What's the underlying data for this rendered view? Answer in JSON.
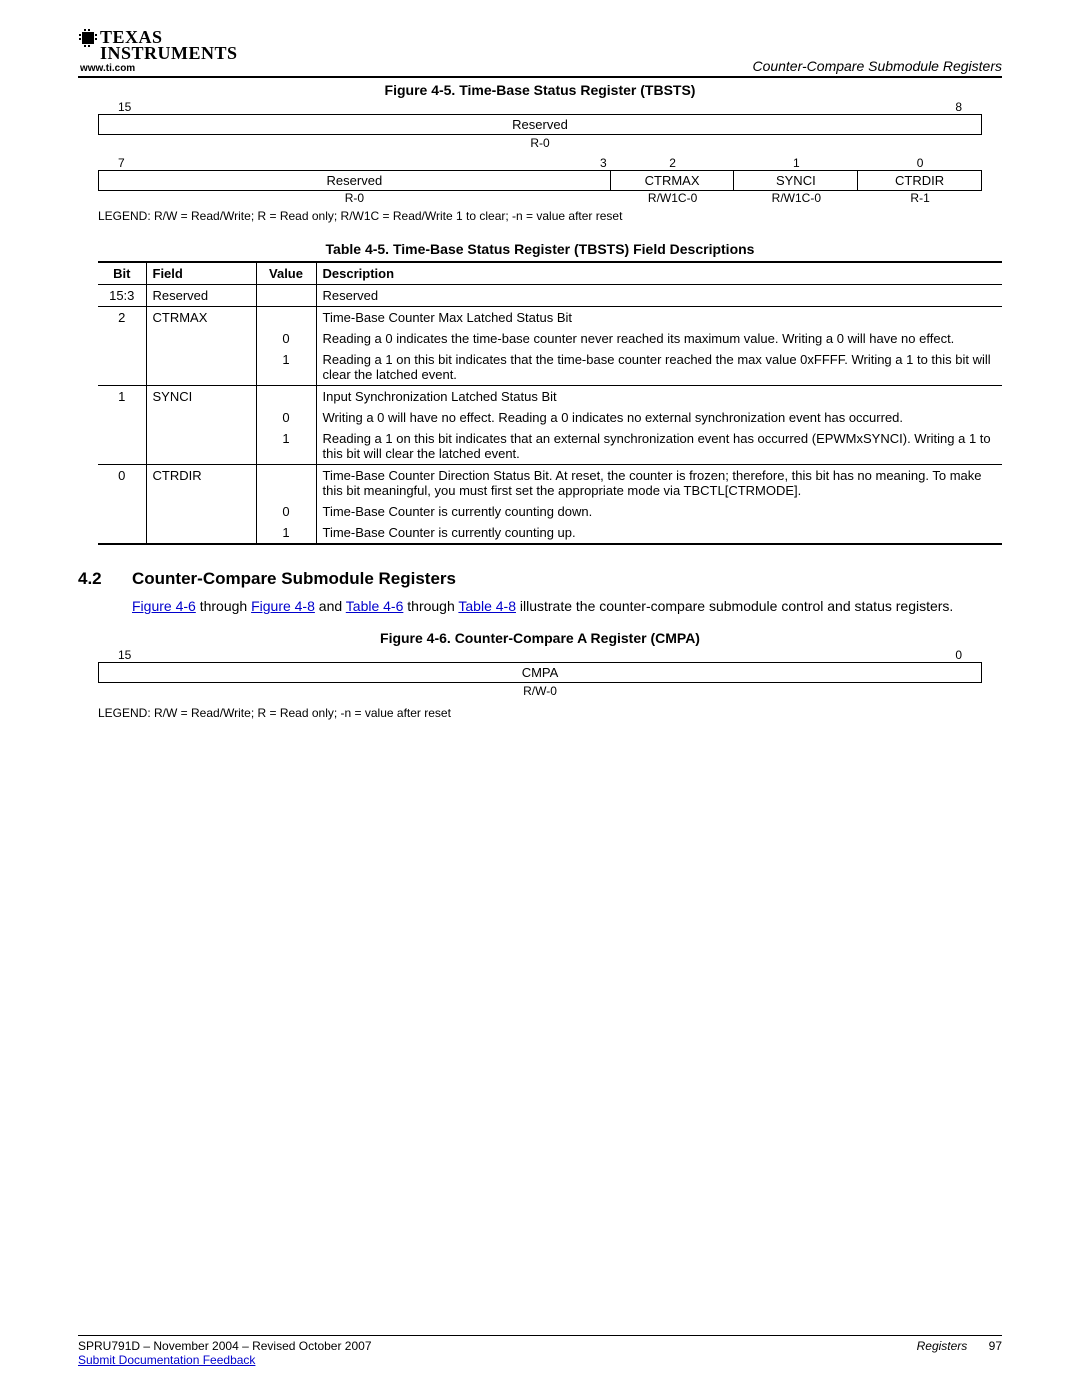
{
  "logo": {
    "line1": "TEXAS",
    "line2": "INSTRUMENTS",
    "url": "www.ti.com"
  },
  "header_section": "Counter-Compare Submodule Registers",
  "figure45": {
    "title": "Figure 4-5. Time-Base Status Register (TBSTS)",
    "row1": {
      "left_bit": "15",
      "right_bit": "8",
      "name": "Reserved",
      "access": "R-0"
    },
    "row2": {
      "bits": [
        "7",
        "3",
        "2",
        "1",
        "0"
      ],
      "cells": [
        "Reserved",
        "CTRMAX",
        "SYNCI",
        "CTRDIR"
      ],
      "access": [
        "R-0",
        "R/W1C-0",
        "R/W1C-0",
        "R-1"
      ],
      "widths_pct": [
        58,
        14,
        14,
        14
      ]
    },
    "legend": "LEGEND: R/W = Read/Write; R = Read only; R/W1C = Read/Write 1 to clear; -n = value after reset"
  },
  "table45": {
    "title": "Table 4-5. Time-Base Status Register (TBSTS) Field Descriptions",
    "headers": [
      "Bit",
      "Field",
      "Value",
      "Description"
    ],
    "rows": [
      {
        "group_top": true,
        "bit": "15:3",
        "field": "Reserved",
        "value": "",
        "desc": "Reserved"
      },
      {
        "group_top": true,
        "bit": "2",
        "field": "CTRMAX",
        "value": "",
        "desc": "Time-Base Counter Max Latched Status Bit"
      },
      {
        "bit": "",
        "field": "",
        "value": "0",
        "desc": "Reading a 0 indicates the time-base counter never reached its maximum value. Writing a 0 will have no effect."
      },
      {
        "bit": "",
        "field": "",
        "value": "1",
        "desc": "Reading a 1 on this bit indicates that the time-base counter reached the max value 0xFFFF. Writing a 1 to this bit will clear the latched event."
      },
      {
        "group_top": true,
        "bit": "1",
        "field": "SYNCI",
        "value": "",
        "desc": "Input Synchronization Latched Status Bit"
      },
      {
        "bit": "",
        "field": "",
        "value": "0",
        "desc": "Writing a 0 will have no effect. Reading a 0 indicates no external synchronization event has occurred."
      },
      {
        "bit": "",
        "field": "",
        "value": "1",
        "desc": "Reading a 1 on this bit indicates that an external synchronization event has occurred (EPWMxSYNCI). Writing a 1 to this bit will clear the latched event."
      },
      {
        "group_top": true,
        "bit": "0",
        "field": "CTRDIR",
        "value": "",
        "desc": "Time-Base Counter Direction Status Bit. At reset, the counter is frozen; therefore, this bit has no meaning. To make this bit meaningful, you must first set the appropriate mode via TBCTL[CTRMODE]."
      },
      {
        "bit": "",
        "field": "",
        "value": "0",
        "desc": "Time-Base Counter is currently counting down."
      },
      {
        "last": true,
        "bit": "",
        "field": "",
        "value": "1",
        "desc": "Time-Base Counter is currently counting up."
      }
    ]
  },
  "section42": {
    "num": "4.2",
    "title": "Counter-Compare Submodule Registers",
    "body_pre": "",
    "link1": "Figure 4-6",
    "mid1": " through ",
    "link2": "Figure 4-8",
    "mid2": " and ",
    "link3": "Table 4-6",
    "mid3": " through ",
    "link4": "Table 4-8",
    "body_post": " illustrate the counter-compare submodule control and status registers."
  },
  "figure46": {
    "title": "Figure 4-6. Counter-Compare A Register (CMPA)",
    "left_bit": "15",
    "right_bit": "0",
    "name": "CMPA",
    "access": "R/W-0",
    "legend": "LEGEND: R/W = Read/Write; R = Read only; -n = value after reset"
  },
  "footer": {
    "left": "SPRU791D – November 2004 – Revised October 2007",
    "right_label": "Registers",
    "page": "97",
    "feedback": "Submit Documentation Feedback"
  }
}
